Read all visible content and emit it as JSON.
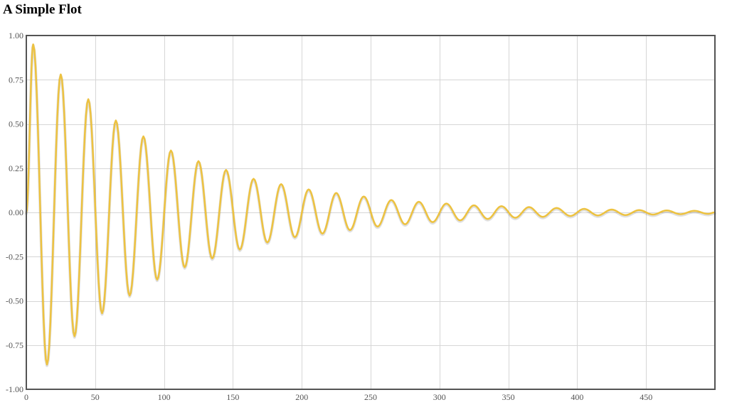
{
  "page": {
    "title": "A Simple Flot"
  },
  "chart_data": {
    "type": "line",
    "title": "A Simple Flot",
    "xlabel": "",
    "ylabel": "",
    "xlim": [
      0,
      500
    ],
    "ylim": [
      -1.0,
      1.0
    ],
    "x_ticks": [
      "0",
      "50",
      "100",
      "150",
      "200",
      "250",
      "300",
      "350",
      "400",
      "450"
    ],
    "y_ticks": [
      "1.00",
      "0.75",
      "0.50",
      "0.25",
      "0.00",
      "-0.25",
      "-0.50",
      "-0.75",
      "-1.00"
    ],
    "grid": true,
    "legend": "none",
    "line_color": "#edc240",
    "series": [
      {
        "color": "#edc240",
        "x": [
          0,
          5,
          15,
          25,
          35,
          45,
          55,
          65,
          75,
          85,
          95,
          105,
          115,
          125,
          135,
          145,
          155,
          165,
          175,
          185,
          195,
          205,
          215,
          225,
          235,
          245,
          255,
          265,
          275,
          285,
          295,
          305,
          315,
          325,
          335,
          345,
          355,
          365,
          375,
          385,
          395,
          405,
          415,
          425,
          435,
          445,
          455,
          465,
          475,
          485,
          495,
          500
        ],
        "values": [
          0.0,
          0.95,
          -0.86,
          0.78,
          -0.7,
          0.64,
          -0.57,
          0.52,
          -0.47,
          0.43,
          -0.38,
          0.35,
          -0.31,
          0.29,
          -0.26,
          0.24,
          -0.21,
          0.19,
          -0.17,
          0.16,
          -0.14,
          0.13,
          -0.12,
          0.11,
          -0.1,
          0.09,
          -0.08,
          0.07,
          -0.067,
          0.06,
          -0.055,
          0.05,
          -0.045,
          0.04,
          -0.037,
          0.035,
          -0.03,
          0.03,
          -0.025,
          0.025,
          -0.02,
          0.02,
          -0.017,
          0.016,
          -0.015,
          0.013,
          -0.012,
          0.011,
          -0.01,
          0.009,
          -0.008,
          0.0
        ]
      }
    ]
  }
}
